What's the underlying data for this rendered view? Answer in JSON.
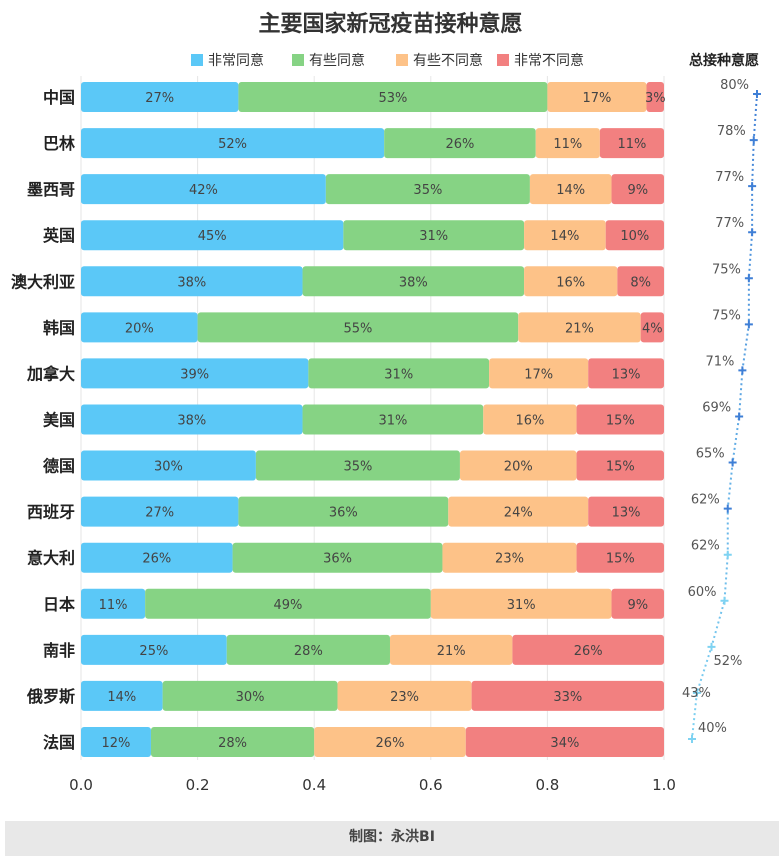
{
  "title": "主要国家新冠疫苗接种意愿",
  "footer": "制图：永洪BI",
  "chart_data": [
    {
      "type": "bar",
      "orientation": "horizontal",
      "stacked": true,
      "categories": [
        "中国",
        "巴林",
        "墨西哥",
        "英国",
        "澳大利亚",
        "韩国",
        "加拿大",
        "美国",
        "德国",
        "西班牙",
        "意大利",
        "日本",
        "南非",
        "俄罗斯",
        "法国"
      ],
      "series": [
        {
          "name": "非常同意",
          "color": "#5bc8f7",
          "values": [
            0.27,
            0.52,
            0.42,
            0.45,
            0.38,
            0.2,
            0.39,
            0.38,
            0.3,
            0.27,
            0.26,
            0.11,
            0.25,
            0.14,
            0.12
          ],
          "labels": [
            "27%",
            "52%",
            "42%",
            "45%",
            "38%",
            "20%",
            "39%",
            "38%",
            "30%",
            "27%",
            "26%",
            "11%",
            "25%",
            "14%",
            "12%"
          ]
        },
        {
          "name": "有些同意",
          "color": "#86d384",
          "values": [
            0.53,
            0.26,
            0.35,
            0.31,
            0.38,
            0.55,
            0.31,
            0.31,
            0.35,
            0.36,
            0.36,
            0.49,
            0.28,
            0.3,
            0.28
          ],
          "labels": [
            "53%",
            "26%",
            "35%",
            "31%",
            "38%",
            "55%",
            "31%",
            "31%",
            "35%",
            "36%",
            "36%",
            "49%",
            "28%",
            "30%",
            "28%"
          ]
        },
        {
          "name": "有些不同意",
          "color": "#fdc288",
          "values": [
            0.17,
            0.11,
            0.14,
            0.14,
            0.16,
            0.21,
            0.17,
            0.16,
            0.2,
            0.24,
            0.23,
            0.31,
            0.21,
            0.23,
            0.26
          ],
          "labels": [
            "17%",
            "11%",
            "14%",
            "14%",
            "16%",
            "21%",
            "17%",
            "16%",
            "20%",
            "24%",
            "23%",
            "31%",
            "21%",
            "23%",
            "26%"
          ]
        },
        {
          "name": "非常不同意",
          "color": "#f28080",
          "values": [
            0.03,
            0.11,
            0.09,
            0.1,
            0.08,
            0.04,
            0.13,
            0.15,
            0.15,
            0.13,
            0.15,
            0.09,
            0.26,
            0.33,
            0.34
          ],
          "labels": [
            "3%",
            "11%",
            "9%",
            "10%",
            "8%",
            "4%",
            "13%",
            "15%",
            "15%",
            "13%",
            "15%",
            "9%",
            "26%",
            "33%",
            "34%"
          ]
        }
      ],
      "xlim": [
        0,
        1.0
      ],
      "xticks": [
        "0.0",
        "0.2",
        "0.4",
        "0.6",
        "0.8",
        "1.0"
      ],
      "grid": true,
      "legend": "top"
    },
    {
      "type": "line",
      "title": "总接种意愿",
      "categories": [
        "中国",
        "巴林",
        "墨西哥",
        "英国",
        "澳大利亚",
        "韩国",
        "加拿大",
        "美国",
        "德国",
        "西班牙",
        "意大利",
        "日本",
        "南非",
        "俄罗斯",
        "法国"
      ],
      "values": [
        0.8,
        0.78,
        0.77,
        0.77,
        0.75,
        0.75,
        0.71,
        0.69,
        0.65,
        0.62,
        0.62,
        0.6,
        0.52,
        0.43,
        0.4
      ],
      "labels": [
        "80%",
        "78%",
        "77%",
        "77%",
        "75%",
        "75%",
        "71%",
        "69%",
        "65%",
        "62%",
        "62%",
        "60%",
        "52%",
        "43%",
        "40%"
      ],
      "color_high": "#3f7fd6",
      "color_low": "#7fd3f2",
      "line_style": "dotted"
    }
  ]
}
